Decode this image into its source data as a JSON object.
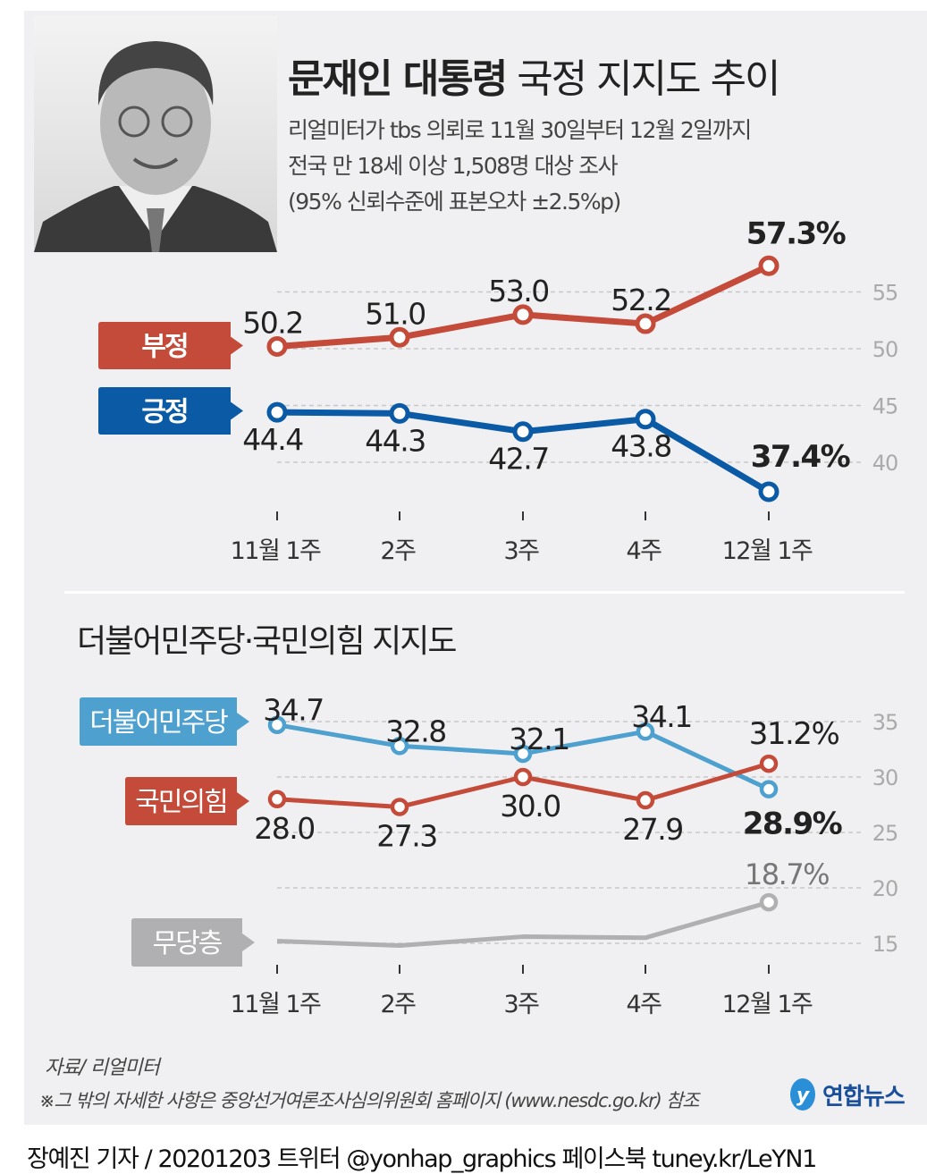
{
  "header": {
    "title_bold": "문재인 대통령",
    "title_rest": "국정 지지도 추이",
    "subtitle_lines": [
      "리얼미터가 tbs 의뢰로 11월 30일부터 12월 2일까지",
      "전국 만 18세 이상 1,508명 대상 조사",
      "(95% 신뢰수준에 표본오차 ±2.5%p)"
    ]
  },
  "section2_title": "더불어민주당·국민의힘 지지도",
  "chart_data": [
    {
      "type": "line",
      "title": "문재인 대통령 국정 지지도 추이",
      "categories": [
        "11월 1주",
        "2주",
        "3주",
        "4주",
        "12월 1주"
      ],
      "yticks": [
        40,
        45,
        50,
        55
      ],
      "ylim": [
        36,
        58
      ],
      "series": [
        {
          "name": "부정",
          "color": "#c44b3a",
          "values": [
            50.2,
            51.0,
            53.0,
            52.2,
            57.3
          ],
          "labels": [
            "50.2",
            "51.0",
            "53.0",
            "52.2",
            "57.3%"
          ]
        },
        {
          "name": "긍정",
          "color": "#0a5aa6",
          "values": [
            44.4,
            44.3,
            42.7,
            43.8,
            37.4
          ],
          "labels": [
            "44.4",
            "44.3",
            "42.7",
            "43.8",
            "37.4%"
          ]
        }
      ]
    },
    {
      "type": "line",
      "title": "더불어민주당·국민의힘 지지도",
      "categories": [
        "11월 1주",
        "2주",
        "3주",
        "4주",
        "12월 1주"
      ],
      "yticks": [
        15,
        20,
        25,
        30,
        35
      ],
      "ylim": [
        14,
        37
      ],
      "series": [
        {
          "name": "더불어민주당",
          "color": "#4ea0cf",
          "values": [
            34.7,
            32.8,
            32.1,
            34.1,
            28.9
          ],
          "labels": [
            "34.7",
            "32.8",
            "32.1",
            "34.1",
            "28.9%"
          ]
        },
        {
          "name": "국민의힘",
          "color": "#c44b3a",
          "values": [
            28.0,
            27.3,
            30.0,
            27.9,
            31.2
          ],
          "labels": [
            "28.0",
            "27.3",
            "30.0",
            "27.9",
            "31.2%"
          ]
        },
        {
          "name": "무당층",
          "color": "#b0b0b2",
          "values": [
            15.2,
            14.8,
            15.6,
            15.5,
            18.7
          ],
          "labels": [
            null,
            null,
            null,
            null,
            "18.7%"
          ]
        }
      ]
    }
  ],
  "footer": {
    "source": "자료/ 리얼미터",
    "note": "※그 밖의 자세한 사항은 중앙선거여론조사심의위원회 홈페이지 (www.nesdc.go.kr) 참조",
    "logo": "연합뉴스",
    "credit": "장예진 기자 / 20201203 트위터 @yonhap_graphics  페이스북 tuney.kr/LeYN1"
  }
}
